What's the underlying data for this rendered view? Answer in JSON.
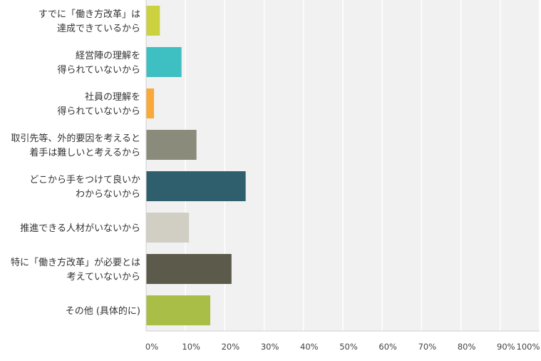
{
  "chart_data": {
    "type": "bar",
    "orientation": "horizontal",
    "categories": [
      [
        "すでに「働き方改革」は",
        "達成できているから"
      ],
      [
        "経営陣の理解を",
        "得られていないから"
      ],
      [
        "社員の理解を",
        "得られていないから"
      ],
      [
        "取引先等、外的要因を考えると",
        "着手は難しいと考えるから"
      ],
      [
        "どこから手をつけて良いか",
        "わからないから"
      ],
      [
        "推進できる人材がいないから"
      ],
      [
        "特に「働き方改革」が必要とは",
        "考えていないから"
      ],
      [
        "その他 (具体的に)"
      ]
    ],
    "values": [
      3.5,
      9,
      2,
      12.8,
      25.3,
      10.9,
      21.7,
      16.3
    ],
    "colors": [
      "#ccd23f",
      "#3ebfc1",
      "#f9a93a",
      "#8a8b7b",
      "#2f5f6d",
      "#d1cfc3",
      "#5c5a4a",
      "#a9be46"
    ],
    "xlim": [
      0,
      100
    ],
    "xticks": [
      0,
      10,
      20,
      30,
      40,
      50,
      60,
      70,
      80,
      90,
      100
    ],
    "xtick_labels": [
      "0%",
      "10%",
      "20%",
      "30%",
      "40%",
      "50%",
      "60%",
      "70%",
      "80%",
      "90%",
      "100%"
    ],
    "grid": true,
    "background": "#f1f1f1",
    "title": "",
    "xlabel": "",
    "ylabel": ""
  }
}
